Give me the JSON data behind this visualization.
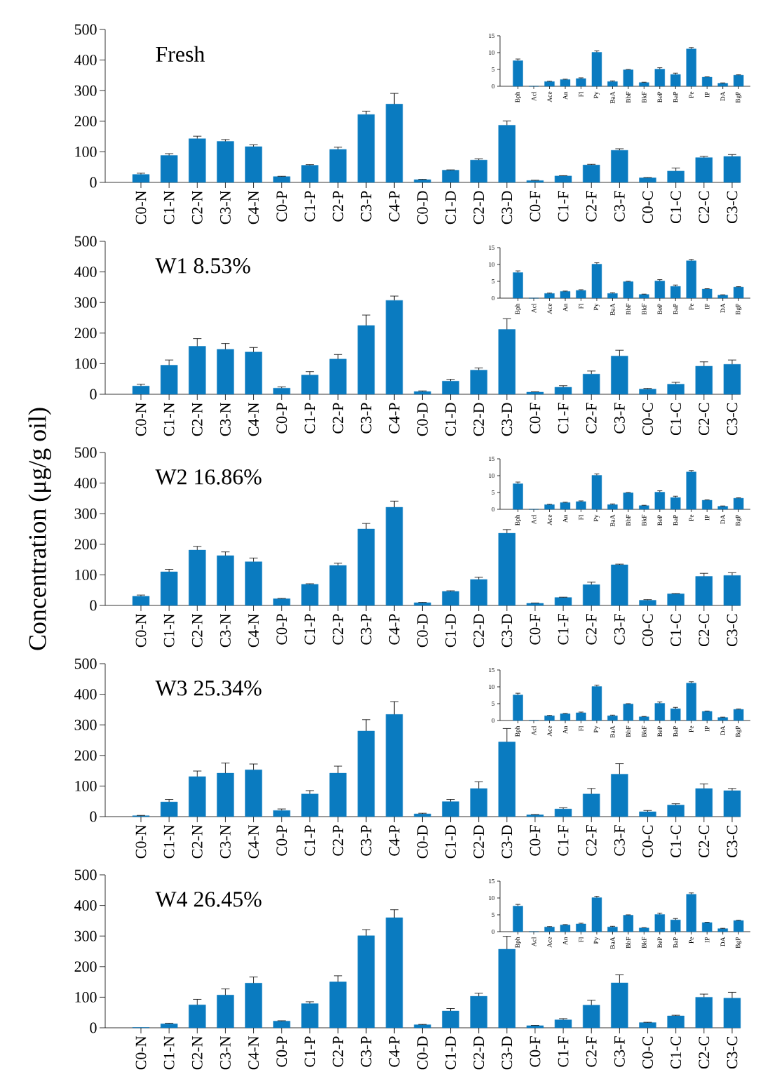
{
  "chart_data": [
    {
      "type": "bar",
      "title": "Fresh",
      "categories": [
        "C0-N",
        "C1-N",
        "C2-N",
        "C3-N",
        "C4-N",
        "C0-P",
        "C1-P",
        "C2-P",
        "C3-P",
        "C4-P",
        "C0-D",
        "C1-D",
        "C2-D",
        "C3-D",
        "C0-F",
        "C1-F",
        "C2-F",
        "C3-F",
        "C0-C",
        "C1-C",
        "C2-C",
        "C3-C"
      ],
      "values": [
        26,
        88,
        143,
        134,
        117,
        19,
        56,
        108,
        222,
        256,
        9,
        40,
        73,
        187,
        6,
        21,
        57,
        105,
        15,
        37,
        81,
        85
      ],
      "errors": [
        4,
        6,
        8,
        6,
        6,
        1,
        2,
        7,
        11,
        35,
        1,
        1,
        4,
        14,
        1,
        1,
        2,
        5,
        1,
        10,
        4,
        6
      ],
      "color": "#0a7bc0",
      "ylim": [
        0,
        500
      ],
      "yticks": [
        0,
        100,
        200,
        300,
        400,
        500
      ]
    },
    {
      "type": "bar",
      "categories": [
        "Bph",
        "Acl",
        "Ace",
        "An",
        "Fl",
        "Py",
        "BaA",
        "BbF",
        "BkF",
        "BeP",
        "BaP",
        "Pe",
        "IP",
        "DA",
        "BgP"
      ],
      "values": [
        7.6,
        0,
        1.4,
        2.0,
        2.3,
        10.1,
        1.4,
        4.9,
        1.1,
        5.1,
        3.5,
        11.1,
        2.7,
        0.9,
        3.3
      ],
      "errors": [
        0.5,
        null,
        0.1,
        0.1,
        0.2,
        0.4,
        0.2,
        0.1,
        0.1,
        0.4,
        0.4,
        0.4,
        0.1,
        0.1,
        0.1
      ],
      "color": "#0a7bc0",
      "ylim": [
        0,
        15
      ],
      "yticks": [
        0,
        5,
        10,
        15
      ]
    },
    {
      "type": "bar",
      "title": "W1 8.53%",
      "categories": [
        "C0-N",
        "C1-N",
        "C2-N",
        "C3-N",
        "C4-N",
        "C0-P",
        "C1-P",
        "C2-P",
        "C3-P",
        "C4-P",
        "C0-D",
        "C1-D",
        "C2-D",
        "C3-D",
        "C0-F",
        "C1-F",
        "C2-F",
        "C3-F",
        "C0-C",
        "C1-C",
        "C2-C",
        "C3-C"
      ],
      "values": [
        27,
        95,
        157,
        147,
        138,
        20,
        63,
        115,
        225,
        307,
        9,
        43,
        79,
        212,
        7,
        23,
        66,
        125,
        17,
        33,
        92,
        98
      ],
      "errors": [
        6,
        17,
        25,
        19,
        15,
        4,
        11,
        15,
        34,
        14,
        2,
        6,
        7,
        35,
        1,
        5,
        10,
        19,
        2,
        6,
        14,
        14
      ],
      "color": "#0a7bc0",
      "ylim": [
        0,
        500
      ],
      "yticks": [
        0,
        100,
        200,
        300,
        400,
        500
      ]
    },
    {
      "type": "bar",
      "categories": [
        "Bph",
        "Acl",
        "Ace",
        "An",
        "Fl",
        "Py",
        "BaA",
        "BbF",
        "BkF",
        "BeP",
        "BaP",
        "Pe",
        "IP",
        "DA",
        "BgP"
      ],
      "values": [
        7.6,
        0,
        1.4,
        2.0,
        2.3,
        10.1,
        1.4,
        4.9,
        1.1,
        5.1,
        3.5,
        11.1,
        2.7,
        0.9,
        3.3
      ],
      "errors": [
        0.5,
        null,
        0.1,
        0.1,
        0.2,
        0.4,
        0.2,
        0.1,
        0.1,
        0.4,
        0.4,
        0.4,
        0.1,
        0.1,
        0.1
      ],
      "color": "#0a7bc0",
      "ylim": [
        0,
        15
      ],
      "yticks": [
        0,
        5,
        10,
        15
      ]
    },
    {
      "type": "bar",
      "title": "W2 16.86%",
      "ylabel": "Concentration (μg/g oil)",
      "categories": [
        "C0-N",
        "C1-N",
        "C2-N",
        "C3-N",
        "C4-N",
        "C0-P",
        "C1-P",
        "C2-P",
        "C3-P",
        "C4-P",
        "C0-D",
        "C1-D",
        "C2-D",
        "C3-D",
        "C0-F",
        "C1-F",
        "C2-F",
        "C3-F",
        "C0-C",
        "C1-C",
        "C2-C",
        "C3-C"
      ],
      "values": [
        30,
        110,
        181,
        163,
        143,
        22,
        69,
        131,
        250,
        321,
        9,
        46,
        85,
        236,
        7,
        26,
        68,
        133,
        17,
        38,
        95,
        98
      ],
      "errors": [
        4,
        8,
        12,
        12,
        12,
        1,
        2,
        7,
        18,
        20,
        1,
        2,
        7,
        12,
        1,
        1,
        8,
        2,
        2,
        1,
        10,
        9
      ],
      "color": "#0a7bc0",
      "ylim": [
        0,
        500
      ],
      "yticks": [
        0,
        100,
        200,
        300,
        400,
        500
      ]
    },
    {
      "type": "bar",
      "categories": [
        "Bph",
        "Acl",
        "Ace",
        "An",
        "Fl",
        "Py",
        "BaA",
        "BbF",
        "BkF",
        "BeP",
        "BaP",
        "Pe",
        "IP",
        "DA",
        "BgP"
      ],
      "values": [
        7.6,
        0,
        1.4,
        2.0,
        2.3,
        10.1,
        1.4,
        4.9,
        1.1,
        5.1,
        3.5,
        11.1,
        2.7,
        0.9,
        3.3
      ],
      "errors": [
        0.5,
        null,
        0.1,
        0.1,
        0.2,
        0.4,
        0.2,
        0.1,
        0.1,
        0.4,
        0.4,
        0.4,
        0.1,
        0.1,
        0.1
      ],
      "color": "#0a7bc0",
      "ylim": [
        0,
        15
      ],
      "yticks": [
        0,
        5,
        10,
        15
      ]
    },
    {
      "type": "bar",
      "title": "W3 25.34%",
      "categories": [
        "C0-N",
        "C1-N",
        "C2-N",
        "C3-N",
        "C4-N",
        "C0-P",
        "C1-P",
        "C2-P",
        "C3-P",
        "C4-P",
        "C0-D",
        "C1-D",
        "C2-D",
        "C3-D",
        "C0-F",
        "C1-F",
        "C2-F",
        "C3-F",
        "C0-C",
        "C1-C",
        "C2-C",
        "C3-C"
      ],
      "values": [
        3,
        48,
        131,
        142,
        153,
        20,
        74,
        142,
        280,
        334,
        9,
        49,
        92,
        244,
        6,
        25,
        74,
        139,
        16,
        38,
        92,
        85
      ],
      "errors": [
        1,
        8,
        18,
        33,
        19,
        5,
        11,
        23,
        37,
        42,
        2,
        7,
        22,
        44,
        1,
        4,
        18,
        34,
        4,
        4,
        15,
        7
      ],
      "color": "#0a7bc0",
      "ylim": [
        0,
        500
      ],
      "yticks": [
        0,
        100,
        200,
        300,
        400,
        500
      ]
    },
    {
      "type": "bar",
      "categories": [
        "Bph",
        "Acl",
        "Ace",
        "An",
        "Fl",
        "Py",
        "BaA",
        "BbF",
        "BkF",
        "BeP",
        "BaP",
        "Pe",
        "IP",
        "DA",
        "BgP"
      ],
      "values": [
        7.6,
        0,
        1.4,
        2.0,
        2.3,
        10.1,
        1.4,
        4.9,
        1.1,
        5.1,
        3.5,
        11.1,
        2.7,
        0.9,
        3.3
      ],
      "errors": [
        0.5,
        null,
        0.1,
        0.1,
        0.2,
        0.4,
        0.2,
        0.1,
        0.1,
        0.4,
        0.4,
        0.4,
        0.1,
        0.1,
        0.1
      ],
      "color": "#0a7bc0",
      "ylim": [
        0,
        15
      ],
      "yticks": [
        0,
        5,
        10,
        15
      ]
    },
    {
      "type": "bar",
      "title": "W4 26.45%",
      "categories": [
        "C0-N",
        "C1-N",
        "C2-N",
        "C3-N",
        "C4-N",
        "C0-P",
        "C1-P",
        "C2-P",
        "C3-P",
        "C4-P",
        "C0-D",
        "C1-D",
        "C2-D",
        "C3-D",
        "C0-F",
        "C1-F",
        "C2-F",
        "C3-F",
        "C0-C",
        "C1-C",
        "C2-C",
        "C3-C"
      ],
      "values": [
        1,
        13,
        75,
        107,
        146,
        22,
        79,
        150,
        301,
        360,
        10,
        55,
        103,
        257,
        7,
        26,
        74,
        147,
        17,
        39,
        100,
        97
      ],
      "errors": [
        null,
        2,
        18,
        20,
        20,
        1,
        6,
        20,
        20,
        26,
        1,
        8,
        10,
        42,
        1,
        4,
        16,
        26,
        1,
        2,
        10,
        19
      ],
      "color": "#0a7bc0",
      "ylim": [
        0,
        500
      ],
      "yticks": [
        0,
        100,
        200,
        300,
        400,
        500
      ]
    },
    {
      "type": "bar",
      "categories": [
        "Bph",
        "Acl",
        "Ace",
        "An",
        "Fl",
        "Py",
        "BaA",
        "BbF",
        "BkF",
        "BeP",
        "BaP",
        "Pe",
        "IP",
        "DA",
        "BgP"
      ],
      "values": [
        7.6,
        0,
        1.4,
        2.0,
        2.3,
        10.1,
        1.4,
        4.9,
        1.1,
        5.1,
        3.5,
        11.1,
        2.7,
        0.9,
        3.3
      ],
      "errors": [
        0.5,
        null,
        0.1,
        0.1,
        0.2,
        0.4,
        0.2,
        0.1,
        0.1,
        0.4,
        0.4,
        0.4,
        0.1,
        0.1,
        0.1
      ],
      "color": "#0a7bc0",
      "ylim": [
        0,
        15
      ],
      "yticks": [
        0,
        5,
        10,
        15
      ]
    }
  ]
}
